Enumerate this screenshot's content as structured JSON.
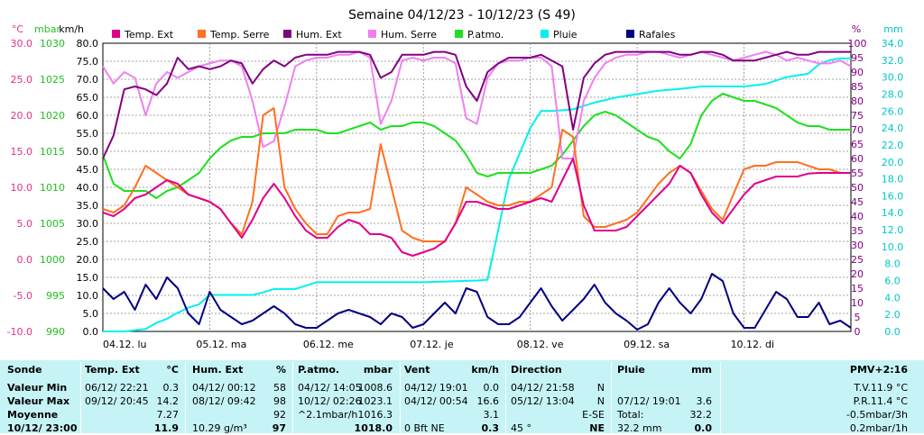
{
  "chart_data": {
    "type": "line",
    "title": "Semaine 04/12/23 - 10/12/23 (S 49)",
    "axis_units": {
      "temp": "°C",
      "press": "mbar",
      "wind": "km/h",
      "hum": "%",
      "rain": "mm"
    },
    "axes": {
      "temp": {
        "ylim": [
          -10,
          30
        ],
        "ticks": [
          "-10.0",
          "-5.0",
          "0.0",
          "5.0",
          "10.0",
          "15.0",
          "20.0",
          "25.0",
          "30.0"
        ],
        "color": "#e0308a"
      },
      "press": {
        "ylim": [
          990,
          1030
        ],
        "ticks": [
          "990",
          "995",
          "1000",
          "1005",
          "1010",
          "1015",
          "1020",
          "1025",
          "1030"
        ],
        "color": "#20c020"
      },
      "wind": {
        "ylim": [
          0,
          80
        ],
        "ticks": [
          "0.0",
          "5.0",
          "10.0",
          "15.0",
          "20.0",
          "25.0",
          "30.0",
          "35.0",
          "40.0",
          "45.0",
          "50.0",
          "55.0",
          "60.0",
          "65.0",
          "70.0",
          "75.0",
          "80.0"
        ],
        "color": "#000000"
      },
      "hum": {
        "ylim": [
          0,
          100
        ],
        "ticks": [
          "0",
          "5",
          "10",
          "15",
          "20",
          "25",
          "30",
          "35",
          "40",
          "45",
          "50",
          "55",
          "60",
          "65",
          "70",
          "75",
          "80",
          "85",
          "90",
          "95",
          "100"
        ],
        "color": "#800080"
      },
      "rain": {
        "ylim": [
          0,
          34
        ],
        "ticks": [
          "0.0",
          "2.0",
          "4.0",
          "6.0",
          "8.0",
          "10.0",
          "12.0",
          "14.0",
          "16.0",
          "18.0",
          "20.0",
          "22.0",
          "24.0",
          "26.0",
          "28.0",
          "30.0",
          "32.0",
          "34.0"
        ],
        "color": "#00c8c8"
      }
    },
    "x_labels": [
      "04.12. lu",
      "05.12. ma",
      "06.12. me",
      "07.12. je",
      "08.12. ve",
      "09.12. sa",
      "10.12. di"
    ],
    "x_range_days": [
      0,
      7
    ],
    "grid": true,
    "legend_position": "top",
    "series": [
      {
        "name": "Temp. Ext",
        "axis": "temp",
        "color": "#e0008a",
        "x": [
          0,
          0.1,
          0.2,
          0.3,
          0.4,
          0.5,
          0.6,
          0.7,
          0.8,
          0.9,
          1.0,
          1.1,
          1.2,
          1.3,
          1.4,
          1.5,
          1.6,
          1.7,
          1.8,
          1.9,
          2.0,
          2.1,
          2.2,
          2.3,
          2.4,
          2.5,
          2.6,
          2.7,
          2.8,
          2.9,
          3.0,
          3.1,
          3.2,
          3.3,
          3.4,
          3.5,
          3.6,
          3.7,
          3.8,
          3.9,
          4.0,
          4.1,
          4.2,
          4.3,
          4.4,
          4.5,
          4.6,
          4.7,
          4.8,
          4.9,
          5.0,
          5.1,
          5.2,
          5.3,
          5.4,
          5.5,
          5.6,
          5.7,
          5.8,
          5.9,
          6.0,
          6.1,
          6.2,
          6.3,
          6.4,
          6.5,
          6.6,
          6.7,
          6.8,
          6.9,
          7.0
        ],
        "y": [
          6.5,
          6.0,
          7.0,
          8.5,
          9.0,
          10.0,
          11.0,
          10.5,
          9.0,
          8.5,
          8.0,
          7.0,
          5.0,
          3.0,
          5.5,
          8.5,
          10.5,
          8.5,
          6.0,
          4.0,
          3.0,
          3.0,
          4.5,
          5.5,
          5.0,
          3.5,
          3.5,
          3.0,
          1.0,
          0.5,
          1.0,
          1.5,
          2.5,
          5.0,
          8.0,
          8.0,
          7.5,
          7.0,
          7.0,
          7.5,
          8.0,
          8.5,
          8.0,
          11.0,
          14.0,
          7.5,
          4.0,
          4.0,
          4.0,
          4.5,
          6.0,
          7.5,
          9.0,
          10.5,
          13.0,
          12.0,
          9.0,
          6.5,
          5.0,
          7.0,
          9.0,
          10.5,
          11.0,
          11.5,
          11.5,
          11.5,
          11.9,
          12.0,
          12.0,
          12.0,
          12.0
        ]
      },
      {
        "name": "Temp. Serre",
        "axis": "temp",
        "color": "#ff7020",
        "x": [
          0,
          0.1,
          0.2,
          0.3,
          0.4,
          0.5,
          0.6,
          0.7,
          0.8,
          0.9,
          1.0,
          1.1,
          1.2,
          1.3,
          1.4,
          1.5,
          1.6,
          1.7,
          1.8,
          1.9,
          2.0,
          2.1,
          2.2,
          2.3,
          2.4,
          2.5,
          2.6,
          2.7,
          2.8,
          2.9,
          3.0,
          3.1,
          3.2,
          3.3,
          3.4,
          3.5,
          3.6,
          3.7,
          3.8,
          3.9,
          4.0,
          4.1,
          4.2,
          4.3,
          4.4,
          4.5,
          4.6,
          4.7,
          4.8,
          4.9,
          5.0,
          5.1,
          5.2,
          5.3,
          5.4,
          5.5,
          5.6,
          5.7,
          5.8,
          5.9,
          6.0,
          6.1,
          6.2,
          6.3,
          6.4,
          6.5,
          6.6,
          6.7,
          6.8,
          6.9,
          7.0
        ],
        "y": [
          7.0,
          6.5,
          7.5,
          10.0,
          13.0,
          12.0,
          11.0,
          10.0,
          9.0,
          8.5,
          8.0,
          7.0,
          5.0,
          3.5,
          8.0,
          20.0,
          21.0,
          10.0,
          7.0,
          5.0,
          3.5,
          3.5,
          6.0,
          6.5,
          6.5,
          7.0,
          16.0,
          10.0,
          4.0,
          3.0,
          2.5,
          2.5,
          2.5,
          5.0,
          10.0,
          9.0,
          8.0,
          7.5,
          7.5,
          8.0,
          8.0,
          9.0,
          10.0,
          18.0,
          17.0,
          6.0,
          4.5,
          4.5,
          5.0,
          5.5,
          6.5,
          8.5,
          10.5,
          12.0,
          13.0,
          12.0,
          9.5,
          7.0,
          5.5,
          9.0,
          12.5,
          13.0,
          13.0,
          13.5,
          13.5,
          13.5,
          13.0,
          12.5,
          12.5,
          12.0,
          12.0
        ]
      },
      {
        "name": "Hum. Ext",
        "axis": "hum",
        "color": "#800080",
        "x": [
          0,
          0.1,
          0.2,
          0.3,
          0.4,
          0.5,
          0.6,
          0.7,
          0.8,
          0.9,
          1.0,
          1.1,
          1.2,
          1.3,
          1.4,
          1.5,
          1.6,
          1.7,
          1.8,
          1.9,
          2.0,
          2.1,
          2.2,
          2.3,
          2.4,
          2.5,
          2.6,
          2.7,
          2.8,
          2.9,
          3.0,
          3.1,
          3.2,
          3.3,
          3.4,
          3.5,
          3.6,
          3.7,
          3.8,
          3.9,
          4.0,
          4.1,
          4.2,
          4.3,
          4.4,
          4.5,
          4.6,
          4.7,
          4.8,
          4.9,
          5.0,
          5.1,
          5.2,
          5.3,
          5.4,
          5.5,
          5.6,
          5.7,
          5.8,
          5.9,
          6.0,
          6.1,
          6.2,
          6.3,
          6.4,
          6.5,
          6.6,
          6.7,
          6.8,
          6.9,
          7.0
        ],
        "y": [
          60,
          68,
          84,
          85,
          84,
          82,
          86,
          95,
          91,
          92,
          91,
          92,
          94,
          93,
          86,
          91,
          94,
          92,
          95,
          96,
          96,
          96,
          97,
          97,
          97,
          96,
          88,
          90,
          96,
          96,
          96,
          97,
          97,
          96,
          85,
          80,
          90,
          93,
          95,
          95,
          95,
          96,
          94,
          92,
          70,
          88,
          93,
          96,
          97,
          97,
          97,
          97,
          97,
          97,
          96,
          96,
          97,
          97,
          96,
          94,
          94,
          94,
          95,
          96,
          97,
          96,
          96,
          97,
          97,
          97,
          97
        ]
      },
      {
        "name": "Hum. Serre",
        "axis": "hum",
        "color": "#f080f0",
        "x": [
          0,
          0.1,
          0.2,
          0.3,
          0.4,
          0.5,
          0.6,
          0.7,
          0.8,
          0.9,
          1.0,
          1.1,
          1.2,
          1.3,
          1.4,
          1.5,
          1.6,
          1.7,
          1.8,
          1.9,
          2.0,
          2.1,
          2.2,
          2.3,
          2.4,
          2.5,
          2.6,
          2.7,
          2.8,
          2.9,
          3.0,
          3.1,
          3.2,
          3.3,
          3.4,
          3.5,
          3.6,
          3.7,
          3.8,
          3.9,
          4.0,
          4.1,
          4.2,
          4.3,
          4.4,
          4.5,
          4.6,
          4.7,
          4.8,
          4.9,
          5.0,
          5.1,
          5.2,
          5.3,
          5.4,
          5.5,
          5.6,
          5.7,
          5.8,
          5.9,
          6.0,
          6.1,
          6.2,
          6.3,
          6.4,
          6.5,
          6.6,
          6.7,
          6.8,
          6.9,
          7.0
        ],
        "y": [
          92,
          86,
          90,
          88,
          75,
          86,
          90,
          88,
          90,
          92,
          93,
          94,
          94,
          92,
          80,
          64,
          66,
          78,
          92,
          94,
          95,
          95,
          96,
          96,
          97,
          95,
          72,
          80,
          94,
          95,
          94,
          95,
          95,
          93,
          74,
          72,
          88,
          93,
          94,
          94,
          95,
          95,
          92,
          60,
          60,
          80,
          88,
          93,
          95,
          96,
          96,
          97,
          97,
          96,
          95,
          96,
          97,
          96,
          95,
          94,
          95,
          96,
          97,
          96,
          94,
          95,
          94,
          93,
          93,
          94,
          92
        ]
      },
      {
        "name": "P.atmo.",
        "axis": "press",
        "color": "#20e020",
        "x": [
          0,
          0.1,
          0.2,
          0.3,
          0.4,
          0.5,
          0.6,
          0.7,
          0.8,
          0.9,
          1.0,
          1.1,
          1.2,
          1.3,
          1.4,
          1.5,
          1.6,
          1.7,
          1.8,
          1.9,
          2.0,
          2.1,
          2.2,
          2.3,
          2.4,
          2.5,
          2.6,
          2.7,
          2.8,
          2.9,
          3.0,
          3.1,
          3.2,
          3.3,
          3.4,
          3.5,
          3.6,
          3.7,
          3.8,
          3.9,
          4.0,
          4.1,
          4.2,
          4.3,
          4.4,
          4.5,
          4.6,
          4.7,
          4.8,
          4.9,
          5.0,
          5.1,
          5.2,
          5.3,
          5.4,
          5.5,
          5.6,
          5.7,
          5.8,
          5.9,
          6.0,
          6.1,
          6.2,
          6.3,
          6.4,
          6.5,
          6.6,
          6.7,
          6.8,
          6.9,
          7.0
        ],
        "y": [
          1014.5,
          1010.5,
          1009.5,
          1009.5,
          1009.5,
          1008.5,
          1009.5,
          1010.0,
          1011.0,
          1012.0,
          1014.0,
          1015.5,
          1016.5,
          1017.0,
          1017.0,
          1017.5,
          1017.5,
          1017.5,
          1018.0,
          1018.0,
          1018.0,
          1017.5,
          1017.5,
          1018.0,
          1018.5,
          1019.0,
          1018.0,
          1018.5,
          1018.5,
          1019.0,
          1019.0,
          1018.5,
          1017.5,
          1016.5,
          1014.5,
          1012.0,
          1011.5,
          1012.0,
          1012.0,
          1012.0,
          1012.0,
          1012.5,
          1013.0,
          1014.5,
          1016.5,
          1018.5,
          1020.0,
          1020.5,
          1020.0,
          1019.0,
          1018.0,
          1017.0,
          1016.5,
          1015.0,
          1014.0,
          1016.0,
          1020.0,
          1022.0,
          1023.0,
          1022.5,
          1022.0,
          1022.0,
          1021.5,
          1021.0,
          1020.0,
          1019.0,
          1018.5,
          1018.5,
          1018.0,
          1018.0,
          1018.0
        ]
      },
      {
        "name": "Pluie",
        "axis": "rain",
        "color": "#00f0f0",
        "x": [
          0,
          0.2,
          0.4,
          0.5,
          0.6,
          0.7,
          0.8,
          0.9,
          1.0,
          1.2,
          1.4,
          1.5,
          1.6,
          1.8,
          2.0,
          2.5,
          3.0,
          3.5,
          3.6,
          3.7,
          3.8,
          3.9,
          4.0,
          4.1,
          4.2,
          4.3,
          4.4,
          4.5,
          4.6,
          4.7,
          4.8,
          5.0,
          5.2,
          5.4,
          5.6,
          5.8,
          6.0,
          6.2,
          6.4,
          6.6,
          6.7,
          6.8,
          6.9,
          7.0
        ],
        "y": [
          0,
          0,
          0.3,
          1.0,
          1.5,
          2.2,
          2.8,
          3.2,
          4.3,
          4.3,
          4.3,
          4.6,
          5.0,
          5.0,
          5.8,
          5.8,
          5.8,
          6.0,
          6.1,
          12.0,
          18.0,
          21.0,
          24.0,
          26.0,
          26.0,
          26.1,
          26.2,
          26.6,
          27.0,
          27.3,
          27.6,
          28.0,
          28.4,
          28.6,
          28.9,
          28.9,
          28.9,
          29.2,
          30.0,
          30.4,
          31.5,
          32.0,
          32.2,
          32.2
        ]
      },
      {
        "name": "Rafales",
        "axis": "wind",
        "color": "#000080",
        "x": [
          0,
          0.1,
          0.2,
          0.3,
          0.4,
          0.5,
          0.6,
          0.7,
          0.8,
          0.9,
          1.0,
          1.1,
          1.2,
          1.3,
          1.4,
          1.5,
          1.6,
          1.7,
          1.8,
          1.9,
          2.0,
          2.1,
          2.2,
          2.3,
          2.4,
          2.5,
          2.6,
          2.7,
          2.8,
          2.9,
          3.0,
          3.1,
          3.2,
          3.3,
          3.4,
          3.5,
          3.6,
          3.7,
          3.8,
          3.9,
          4.0,
          4.1,
          4.2,
          4.3,
          4.4,
          4.5,
          4.6,
          4.7,
          4.8,
          4.9,
          5.0,
          5.1,
          5.2,
          5.3,
          5.4,
          5.5,
          5.6,
          5.7,
          5.8,
          5.9,
          6.0,
          6.1,
          6.2,
          6.3,
          6.4,
          6.5,
          6.6,
          6.7,
          6.8,
          6.9,
          7.0
        ],
        "y": [
          12,
          9,
          11,
          6,
          13,
          9,
          15,
          12,
          5,
          2,
          11,
          6,
          4,
          2,
          3,
          5,
          7,
          5,
          2,
          1,
          1,
          3,
          5,
          6,
          5,
          4,
          2,
          5,
          4,
          1,
          2,
          5,
          8,
          5,
          12,
          11,
          4,
          2,
          2,
          4,
          8,
          12,
          7,
          3,
          6,
          9,
          13,
          8,
          5,
          3,
          0.5,
          2,
          8,
          12,
          8,
          5,
          9,
          16,
          14,
          5,
          1,
          1,
          6,
          11,
          9,
          4,
          4,
          8,
          2,
          3,
          1
        ]
      }
    ]
  },
  "stats": {
    "headers": {
      "sonde": "Sonde",
      "temp": "Temp. Ext",
      "temp_unit": "°C",
      "hum": "Hum. Ext",
      "hum_unit": "%",
      "press": "P.atmo.",
      "press_unit": "mbar",
      "vent": "Vent",
      "vent_unit": "km/h",
      "dir": "Direction",
      "pluie": "Pluie",
      "pluie_unit": "mm",
      "pmv": "PMV+2:16"
    },
    "row_labels": [
      "Valeur Min",
      "Valeur Max",
      "Moyenne",
      "10/12/ 23:00"
    ],
    "temp": [
      [
        "06/12/ 22:21",
        "0.3"
      ],
      [
        "09/12/ 20:45",
        "14.2"
      ],
      [
        "",
        "7.27"
      ],
      [
        "",
        "11.9"
      ]
    ],
    "hum": [
      [
        "04/12/ 00:12",
        "58"
      ],
      [
        "08/12/ 09:42",
        "98"
      ],
      [
        "",
        "92"
      ],
      [
        "10.29 g/m³",
        "97"
      ]
    ],
    "press": [
      [
        "04/12/ 14:05",
        "1008.6"
      ],
      [
        "10/12/ 02:26",
        "1023.1"
      ],
      [
        "^2.1mbar/h",
        "1016.3"
      ],
      [
        "",
        "1018.0"
      ]
    ],
    "vent": [
      [
        "04/12/ 19:01",
        "0.0"
      ],
      [
        "04/12/ 00:54",
        "16.6"
      ],
      [
        "",
        "3.1"
      ],
      [
        "0 Bft NE",
        "0.3"
      ]
    ],
    "dir": [
      [
        "04/12/ 21:58",
        "N"
      ],
      [
        "05/12/ 13:04",
        "N"
      ],
      [
        "",
        "E-SE"
      ],
      [
        "45 °",
        "NE"
      ]
    ],
    "pluie": [
      [
        "",
        ""
      ],
      [
        "07/12/ 19:01",
        "3.6"
      ],
      [
        "Total:",
        "32.2"
      ],
      [
        "32.2 mm",
        "0.0"
      ]
    ],
    "pmv": [
      "T.V.11.9 °C",
      "P.R.11.4 °C",
      "-0.5mbar/3h",
      "0.2mbar/1h"
    ]
  }
}
